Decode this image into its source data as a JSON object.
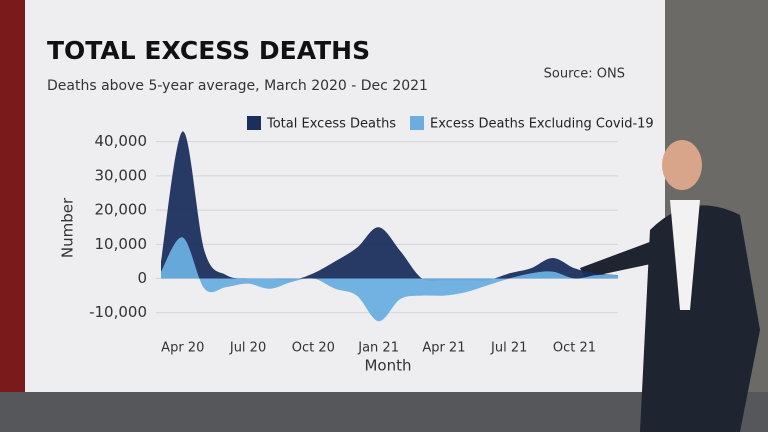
{
  "chart_data": {
    "type": "area",
    "title": "TOTAL EXCESS DEATHS",
    "subtitle": "Deaths above 5-year average, March 2020 - Dec 2021",
    "source": "Source: ONS",
    "y_label": "Number",
    "x_label": "Month",
    "categories": [
      null,
      "Apr 20",
      null,
      null,
      "Jul 20",
      null,
      null,
      "Oct 20",
      null,
      null,
      "Jan 21",
      null,
      null,
      "Apr 21",
      null,
      null,
      "Jul 21",
      null,
      null,
      "Oct 21",
      null,
      null
    ],
    "series": [
      {
        "name": "Total Excess Deaths",
        "color": "#1b2f5e",
        "values": [
          5000,
          43000,
          8000,
          1000,
          0,
          0,
          -500,
          1500,
          5000,
          9000,
          15000,
          8000,
          0,
          -500,
          -500,
          -500,
          1500,
          3000,
          6000,
          3000,
          1500,
          1000
        ]
      },
      {
        "name": "Excess Deaths Excluding Covid-19",
        "color": "#6aaee0",
        "values": [
          2000,
          12000,
          -3000,
          -2500,
          -1500,
          -3000,
          -1000,
          0,
          -3000,
          -5000,
          -12500,
          -6000,
          -5000,
          -5000,
          -4000,
          -2000,
          0,
          1500,
          2000,
          0,
          1000,
          1000
        ]
      }
    ],
    "ylim": [
      -13000,
      44000
    ],
    "yticks": [
      {
        "value": -10000,
        "label": "-10,000"
      },
      0,
      {
        "value": 10000,
        "label": "10,000"
      },
      {
        "value": 20000,
        "label": "20,000"
      },
      {
        "value": 30000,
        "label": "30,000"
      },
      {
        "value": 40000,
        "label": "40,000"
      }
    ],
    "grid": true,
    "legend": "top"
  }
}
